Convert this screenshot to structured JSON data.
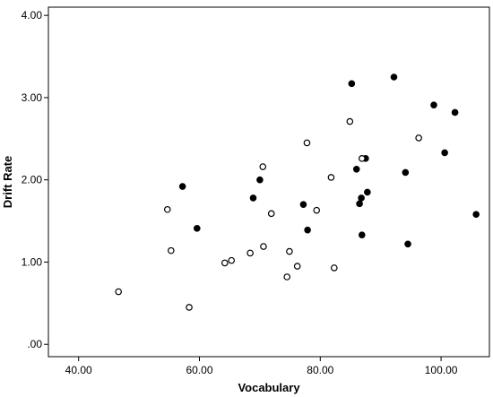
{
  "chart_data": {
    "type": "scatter",
    "title": "",
    "xlabel": "Vocabulary",
    "ylabel": "Drift Rate",
    "xlim": [
      35,
      108
    ],
    "ylim": [
      -0.15,
      4.1
    ],
    "x_ticks": [
      40,
      60,
      80,
      100
    ],
    "x_tick_labels": [
      "40.00",
      "60.00",
      "80.00",
      "100.00"
    ],
    "y_ticks": [
      0,
      1,
      2,
      3,
      4
    ],
    "y_tick_labels": [
      ".00",
      "1.00",
      "2.00",
      "3.00",
      "4.00"
    ],
    "grid": false,
    "legend": "none",
    "series": [
      {
        "marker": "filled-circle",
        "color": "#000000",
        "points": [
          [
            57.2,
            1.92
          ],
          [
            59.6,
            1.41
          ],
          [
            68.9,
            1.78
          ],
          [
            70.0,
            2.0
          ],
          [
            77.2,
            1.7
          ],
          [
            77.9,
            1.39
          ],
          [
            85.2,
            3.17
          ],
          [
            86.0,
            2.13
          ],
          [
            86.5,
            1.71
          ],
          [
            86.8,
            1.78
          ],
          [
            86.9,
            1.33
          ],
          [
            87.5,
            2.26
          ],
          [
            87.8,
            1.85
          ],
          [
            92.2,
            3.25
          ],
          [
            94.1,
            2.09
          ],
          [
            94.5,
            1.22
          ],
          [
            98.8,
            2.91
          ],
          [
            100.6,
            2.33
          ],
          [
            102.3,
            2.82
          ],
          [
            105.8,
            1.58
          ]
        ]
      },
      {
        "marker": "open-circle",
        "color": "#000000",
        "points": [
          [
            46.6,
            0.64
          ],
          [
            54.7,
            1.64
          ],
          [
            55.3,
            1.14
          ],
          [
            58.3,
            0.45
          ],
          [
            64.2,
            0.99
          ],
          [
            65.3,
            1.02
          ],
          [
            68.4,
            1.11
          ],
          [
            70.5,
            2.16
          ],
          [
            70.6,
            1.19
          ],
          [
            71.9,
            1.59
          ],
          [
            74.5,
            0.82
          ],
          [
            74.9,
            1.13
          ],
          [
            76.2,
            0.95
          ],
          [
            77.8,
            2.45
          ],
          [
            79.4,
            1.63
          ],
          [
            81.8,
            2.03
          ],
          [
            82.3,
            0.93
          ],
          [
            84.9,
            2.71
          ],
          [
            86.9,
            2.26
          ],
          [
            96.3,
            2.51
          ]
        ]
      }
    ]
  }
}
